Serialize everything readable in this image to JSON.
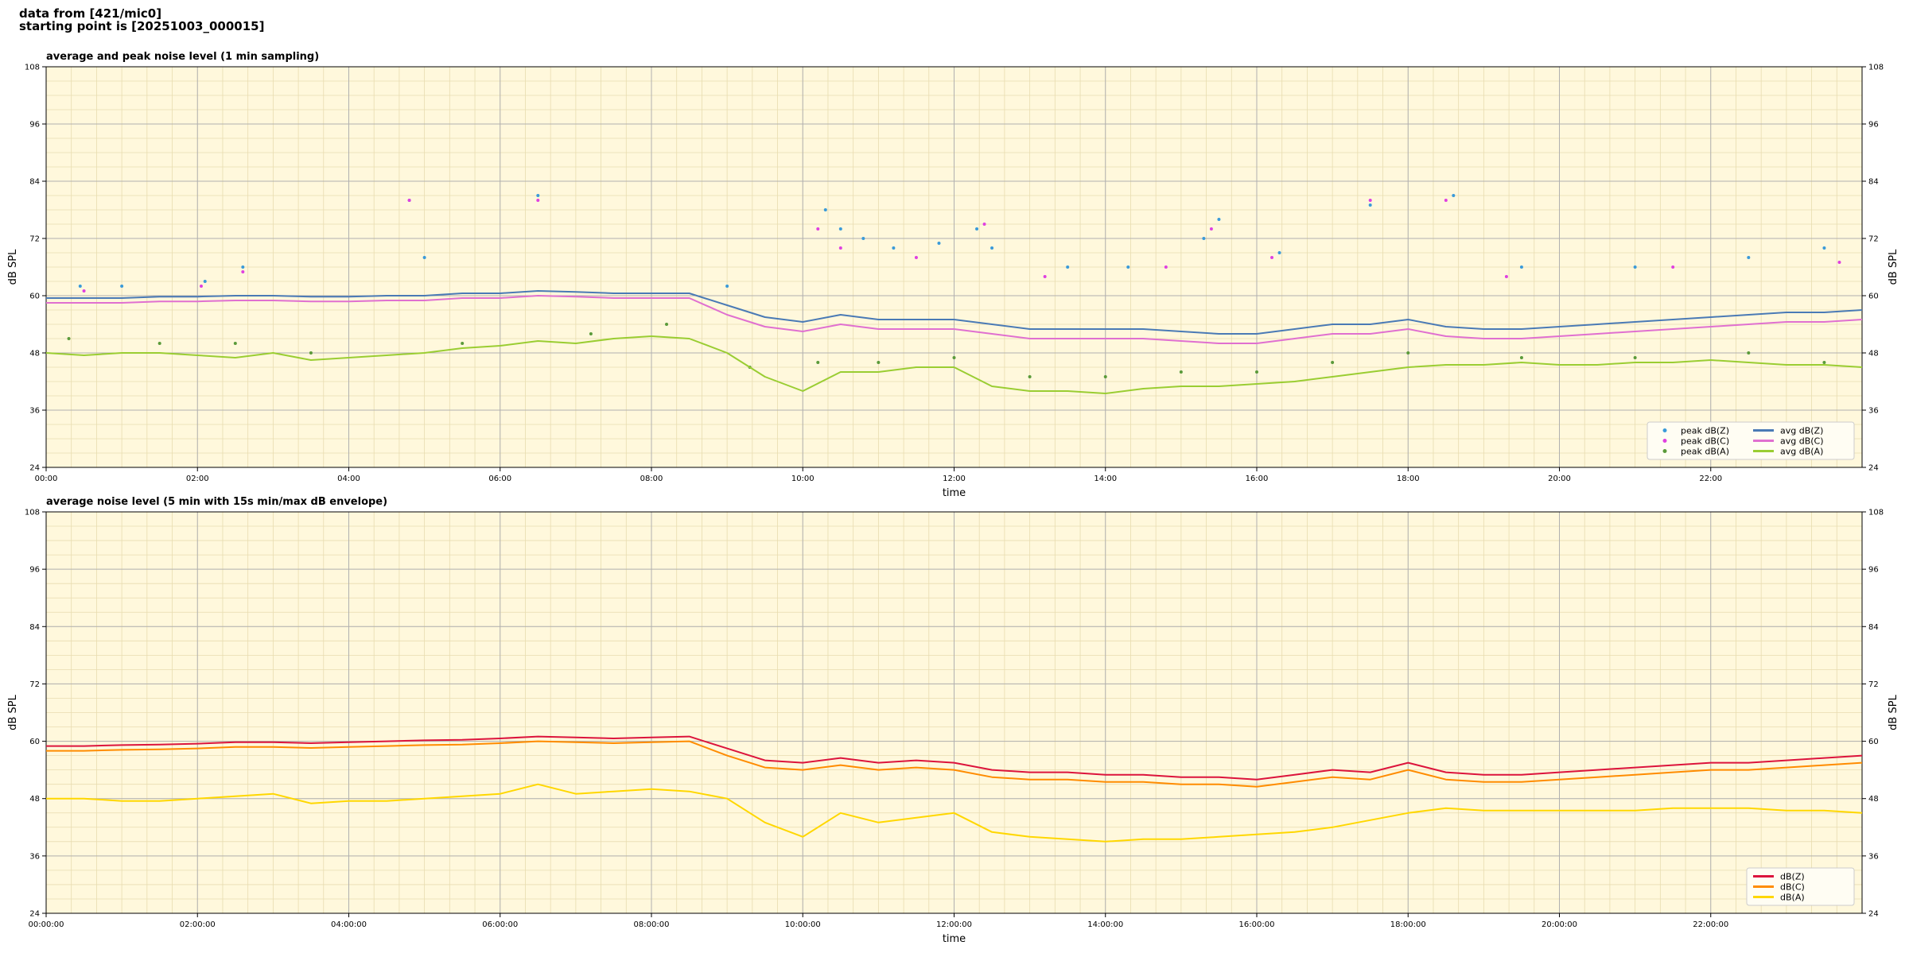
{
  "header": {
    "lines": [
      "data from [421/mic0]",
      "starting point is [20251003_000015]"
    ]
  },
  "chart_data": [
    {
      "type": "line",
      "title": "average and peak noise level (1 min sampling)",
      "xlabel": "time",
      "ylabel": "dB SPL",
      "facecolor": "#fff8dc",
      "grid": true,
      "legend": "lower right",
      "legend_columns": 2,
      "xlim": [
        0,
        24
      ],
      "xticks": [
        {
          "value": 0,
          "label": "00:00"
        },
        {
          "value": 2,
          "label": "02:00"
        },
        {
          "value": 4,
          "label": "04:00"
        },
        {
          "value": 6,
          "label": "06:00"
        },
        {
          "value": 8,
          "label": "08:00"
        },
        {
          "value": 10,
          "label": "10:00"
        },
        {
          "value": 12,
          "label": "12:00"
        },
        {
          "value": 14,
          "label": "14:00"
        },
        {
          "value": 16,
          "label": "16:00"
        },
        {
          "value": 18,
          "label": "18:00"
        },
        {
          "value": 20,
          "label": "20:00"
        },
        {
          "value": 22,
          "label": "22:00"
        }
      ],
      "ylim": [
        24,
        108
      ],
      "yticks": [
        24,
        36,
        48,
        60,
        72,
        84,
        96,
        108
      ],
      "x": [
        0,
        0.5,
        1,
        1.5,
        2,
        2.5,
        3,
        3.5,
        4,
        4.5,
        5,
        5.5,
        6,
        6.5,
        7,
        7.5,
        8,
        8.5,
        9,
        9.5,
        10,
        10.5,
        11,
        11.5,
        12,
        12.5,
        13,
        13.5,
        14,
        14.5,
        15,
        15.5,
        16,
        16.5,
        17,
        17.5,
        18,
        18.5,
        19,
        19.5,
        20,
        20.5,
        21,
        21.5,
        22,
        22.5,
        23,
        23.5,
        24
      ],
      "series": [
        {
          "name": "peak dB(Z)",
          "type": "scatter",
          "color": "#3a9ad9",
          "x": [
            0.45,
            1.0,
            2.1,
            2.6,
            4.8,
            5.0,
            6.5,
            9.0,
            10.3,
            10.5,
            10.8,
            11.2,
            11.8,
            12.3,
            12.5,
            13.5,
            14.3,
            15.3,
            15.5,
            16.3,
            17.5,
            18.6,
            19.5,
            21.0,
            22.5,
            23.5
          ],
          "values": [
            62,
            62,
            63,
            66,
            80,
            68,
            81,
            62,
            78,
            74,
            72,
            70,
            71,
            74,
            70,
            66,
            66,
            72,
            76,
            69,
            79,
            81,
            66,
            66,
            68,
            70
          ]
        },
        {
          "name": "peak dB(C)",
          "type": "scatter",
          "color": "#e040e0",
          "x": [
            0.5,
            2.05,
            2.6,
            4.8,
            6.5,
            10.2,
            10.5,
            11.5,
            12.4,
            13.2,
            14.8,
            15.4,
            16.2,
            17.5,
            18.5,
            19.3,
            21.5,
            23.7
          ],
          "values": [
            61,
            62,
            65,
            80,
            80,
            74,
            70,
            68,
            75,
            64,
            66,
            74,
            68,
            80,
            80,
            64,
            66,
            67
          ]
        },
        {
          "name": "peak dB(A)",
          "type": "scatter",
          "color": "#5a9a3a",
          "x": [
            0.3,
            1.5,
            2.5,
            3.5,
            5.5,
            7.2,
            8.2,
            9.3,
            10.2,
            11,
            12,
            13,
            14,
            15,
            16,
            17,
            18,
            19.5,
            21,
            22.5,
            23.5
          ],
          "values": [
            51,
            50,
            50,
            48,
            50,
            52,
            54,
            45,
            46,
            46,
            47,
            43,
            43,
            44,
            44,
            46,
            48,
            47,
            47,
            48,
            46
          ]
        },
        {
          "name": "avg dB(Z)",
          "type": "line",
          "color": "#4a7ab5",
          "values": [
            59.5,
            59.5,
            59.5,
            59.8,
            59.8,
            60,
            60,
            59.8,
            59.8,
            60,
            60,
            60.5,
            60.5,
            61,
            60.8,
            60.5,
            60.5,
            60.5,
            58,
            55.5,
            54.5,
            56,
            55,
            55,
            55,
            54,
            53,
            53,
            53,
            53,
            52.5,
            52,
            52,
            53,
            54,
            54,
            55,
            53.5,
            53,
            53,
            53.5,
            54,
            54.5,
            55,
            55.5,
            56,
            56.5,
            56.5,
            57
          ]
        },
        {
          "name": "avg dB(C)",
          "type": "line",
          "color": "#e070d0",
          "values": [
            58.5,
            58.5,
            58.5,
            58.8,
            58.8,
            59,
            59,
            58.8,
            58.8,
            59,
            59,
            59.5,
            59.5,
            60,
            59.8,
            59.5,
            59.5,
            59.5,
            56,
            53.5,
            52.5,
            54,
            53,
            53,
            53,
            52,
            51,
            51,
            51,
            51,
            50.5,
            50,
            50,
            51,
            52,
            52,
            53,
            51.5,
            51,
            51,
            51.5,
            52,
            52.5,
            53,
            53.5,
            54,
            54.5,
            54.5,
            55
          ]
        },
        {
          "name": "avg dB(A)",
          "type": "line",
          "color": "#9acd32",
          "values": [
            48,
            47.5,
            48,
            48,
            47.5,
            47,
            48,
            46.5,
            47,
            47.5,
            48,
            49,
            49.5,
            50.5,
            50,
            51,
            51.5,
            51,
            48,
            43,
            40,
            44,
            44,
            45,
            45,
            41,
            40,
            40,
            39.5,
            40.5,
            41,
            41,
            41.5,
            42,
            43,
            44,
            45,
            45.5,
            45.5,
            46,
            45.5,
            45.5,
            46,
            46,
            46.5,
            46,
            45.5,
            45.5,
            45
          ]
        }
      ]
    },
    {
      "type": "line",
      "title": "average noise level (5 min with 15s min/max dB envelope)",
      "xlabel": "time",
      "ylabel": "dB SPL",
      "facecolor": "#fff8dc",
      "grid": true,
      "legend": "lower right",
      "legend_columns": 1,
      "xlim": [
        0,
        24
      ],
      "xticks": [
        {
          "value": 0,
          "label": "00:00:00"
        },
        {
          "value": 2,
          "label": "02:00:00"
        },
        {
          "value": 4,
          "label": "04:00:00"
        },
        {
          "value": 6,
          "label": "06:00:00"
        },
        {
          "value": 8,
          "label": "08:00:00"
        },
        {
          "value": 10,
          "label": "10:00:00"
        },
        {
          "value": 12,
          "label": "12:00:00"
        },
        {
          "value": 14,
          "label": "14:00:00"
        },
        {
          "value": 16,
          "label": "16:00:00"
        },
        {
          "value": 18,
          "label": "18:00:00"
        },
        {
          "value": 20,
          "label": "20:00:00"
        },
        {
          "value": 22,
          "label": "22:00:00"
        }
      ],
      "ylim": [
        24,
        108
      ],
      "yticks": [
        24,
        36,
        48,
        60,
        72,
        84,
        96,
        108
      ],
      "x": [
        0,
        0.5,
        1,
        1.5,
        2,
        2.5,
        3,
        3.5,
        4,
        4.5,
        5,
        5.5,
        6,
        6.5,
        7,
        7.5,
        8,
        8.5,
        9,
        9.5,
        10,
        10.5,
        11,
        11.5,
        12,
        12.5,
        13,
        13.5,
        14,
        14.5,
        15,
        15.5,
        16,
        16.5,
        17,
        17.5,
        18,
        18.5,
        19,
        19.5,
        20,
        20.5,
        21,
        21.5,
        22,
        22.5,
        23,
        23.5,
        24
      ],
      "series": [
        {
          "name": "dB(Z)",
          "type": "line",
          "color": "#dc143c",
          "values": [
            59,
            59,
            59.2,
            59.3,
            59.5,
            59.8,
            59.8,
            59.6,
            59.8,
            60,
            60.2,
            60.3,
            60.6,
            61,
            60.8,
            60.6,
            60.8,
            61,
            58.5,
            56,
            55.5,
            56.5,
            55.5,
            56,
            55.5,
            54,
            53.5,
            53.5,
            53,
            53,
            52.5,
            52.5,
            52,
            53,
            54,
            53.5,
            55.5,
            53.5,
            53,
            53,
            53.5,
            54,
            54.5,
            55,
            55.5,
            55.5,
            56,
            56.5,
            57
          ]
        },
        {
          "name": "dB(C)",
          "type": "line",
          "color": "#ff8c00",
          "values": [
            58,
            58,
            58.2,
            58.3,
            58.5,
            58.8,
            58.8,
            58.6,
            58.8,
            59,
            59.2,
            59.3,
            59.6,
            60,
            59.8,
            59.6,
            59.8,
            60,
            57,
            54.5,
            54,
            55,
            54,
            54.5,
            54,
            52.5,
            52,
            52,
            51.5,
            51.5,
            51,
            51,
            50.5,
            51.5,
            52.5,
            52,
            54,
            52,
            51.5,
            51.5,
            52,
            52.5,
            53,
            53.5,
            54,
            54,
            54.5,
            55,
            55.5
          ]
        },
        {
          "name": "dB(A)",
          "type": "line",
          "color": "#ffd700",
          "values": [
            48,
            48,
            47.5,
            47.5,
            48,
            48.5,
            49,
            47,
            47.5,
            47.5,
            48,
            48.5,
            49,
            51,
            49,
            49.5,
            50,
            49.5,
            48,
            43,
            40,
            45,
            43,
            44,
            45,
            41,
            40,
            39.5,
            39,
            39.5,
            39.5,
            40,
            40.5,
            41,
            42,
            43.5,
            45,
            46,
            45.5,
            45.5,
            45.5,
            45.5,
            45.5,
            46,
            46,
            46,
            45.5,
            45.5,
            45
          ]
        }
      ]
    }
  ]
}
